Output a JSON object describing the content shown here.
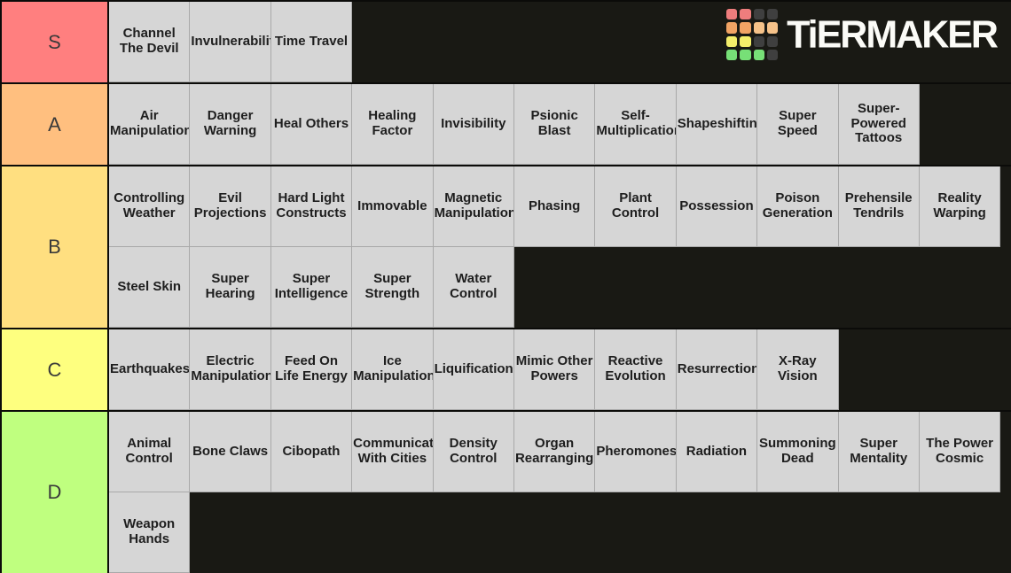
{
  "logo": {
    "text": "TiERMAKER",
    "grid_colors": [
      [
        "#ef7d7d",
        "#ef7d7d",
        "#3f3f3f",
        "#3f3f3f"
      ],
      [
        "#f1a364",
        "#f1a364",
        "#f6c289",
        "#f6c289"
      ],
      [
        "#f4ee6b",
        "#f4ee6b",
        "#3f3f3f",
        "#3f3f3f"
      ],
      [
        "#77e077",
        "#77e077",
        "#77e077",
        "#3f3f3f"
      ]
    ]
  },
  "board": {
    "background": "#191914",
    "separator": "#0b0b09",
    "tile_bg": "#d6d6d6",
    "tile_border": "#a9a9a9",
    "tile_text_color": "#1e1e1e",
    "label_text_color": "#3a3a3a"
  },
  "tiers": [
    {
      "label": "S",
      "color": "#ff7f7f",
      "items": [
        "Channel The Devil",
        "Invulnerability",
        "Time Travel"
      ]
    },
    {
      "label": "A",
      "color": "#ffbf7f",
      "items": [
        "Air Manipulation",
        "Danger Warning",
        "Heal Others",
        "Healing Factor",
        "Invisibility",
        "Psionic Blast",
        "Self-Multiplication",
        "Shapeshifting",
        "Super Speed",
        "Super-Powered Tattoos"
      ]
    },
    {
      "label": "B",
      "color": "#ffdf80",
      "items": [
        "Controlling Weather",
        "Evil Projections",
        "Hard Light Constructs",
        "Immovable",
        "Magnetic Manipulation",
        "Phasing",
        "Plant Control",
        "Possession",
        "Poison Generation",
        "Prehensile Tendrils",
        "Reality Warping",
        "Steel Skin",
        "Super Hearing",
        "Super Intelligence",
        "Super Strength",
        "Water Control"
      ]
    },
    {
      "label": "C",
      "color": "#feff7f",
      "items": [
        "Earthquakes",
        "Electric Manipulation",
        "Feed On Life Energy",
        "Ice Manipulation",
        "Liquification",
        "Mimic Other Powers",
        "Reactive Evolution",
        "Resurrection",
        "X-Ray Vision"
      ]
    },
    {
      "label": "D",
      "color": "#bfff7f",
      "items": [
        "Animal Control",
        "Bone Claws",
        "Cibopath",
        "Communicate With Cities",
        "Density Control",
        "Organ Rearranging",
        "Pheromones",
        "Radiation",
        "Summoning Dead",
        "Super Mentality",
        "The Power Cosmic",
        "Weapon Hands"
      ]
    }
  ]
}
